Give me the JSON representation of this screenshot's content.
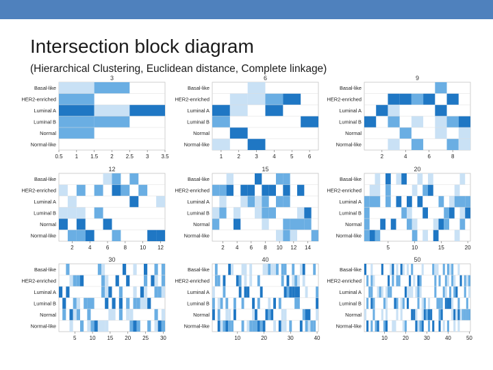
{
  "slide": {
    "title": "Intersection block diagram",
    "subtitle": "(Hierarchical Clustering, Euclidean distance, Complete linkage)",
    "topbar_color": "#4f81bd"
  },
  "chart_data": {
    "type": "heatmap",
    "row_labels": [
      "Basal-like",
      "HER2-enriched",
      "Luminal A",
      "Luminal B",
      "Normal",
      "Normal-like"
    ],
    "colors": {
      "high": "#1f77c4",
      "mid": "#6aaee3",
      "low": "#c9e1f5",
      "zero": "#ffffff",
      "gridline": "#dddddd"
    },
    "panels": [
      {
        "k": 3,
        "title": "3",
        "xticks": [
          "0.5",
          "1",
          "1.5",
          "2",
          "2.5",
          "3",
          "3.5"
        ],
        "xlim": [
          0.5,
          3.5
        ]
      },
      {
        "k": 6,
        "title": "6",
        "xticks": [
          "1",
          "2",
          "3",
          "4",
          "5",
          "6"
        ],
        "xlim": [
          0.5,
          6.5
        ]
      },
      {
        "k": 9,
        "title": "9",
        "xticks": [
          "2",
          "4",
          "6",
          "8"
        ],
        "xlim": [
          0.5,
          9.5
        ]
      },
      {
        "k": 12,
        "title": "12",
        "xticks": [
          "2",
          "4",
          "6",
          "8",
          "10",
          "12"
        ],
        "xlim": [
          0.5,
          12.5
        ]
      },
      {
        "k": 15,
        "title": "15",
        "xticks": [
          "2",
          "4",
          "6",
          "8",
          "10",
          "12",
          "14"
        ],
        "xlim": [
          0.5,
          15.5
        ]
      },
      {
        "k": 20,
        "title": "20",
        "xticks": [
          "5",
          "10",
          "15",
          "20"
        ],
        "xlim": [
          0.5,
          20.5
        ]
      },
      {
        "k": 30,
        "title": "30",
        "xticks": [
          "5",
          "10",
          "15",
          "20",
          "25",
          "30"
        ],
        "xlim": [
          0.5,
          30.5
        ]
      },
      {
        "k": 40,
        "title": "40",
        "xticks": [
          "10",
          "20",
          "30",
          "40"
        ],
        "xlim": [
          0.5,
          40.5
        ]
      },
      {
        "k": 50,
        "title": "50",
        "xticks": [
          "10",
          "20",
          "30",
          "40",
          "50"
        ],
        "xlim": [
          0.5,
          50.5
        ]
      }
    ]
  }
}
